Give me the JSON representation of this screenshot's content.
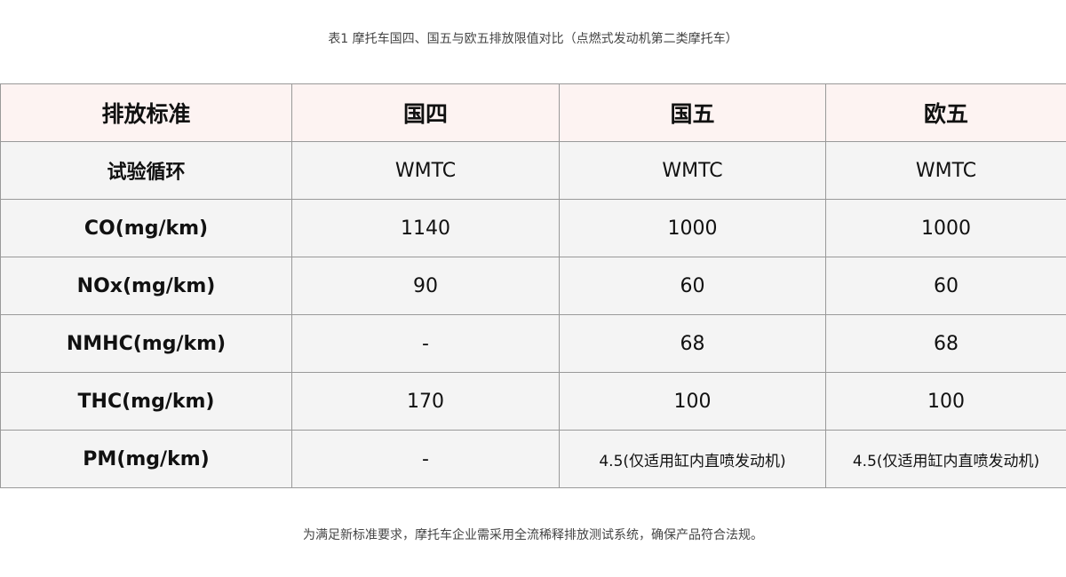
{
  "caption": "表1 摩托车国四、国五与欧五排放限值对比（点燃式发动机第二类摩托车）",
  "table": {
    "headers": [
      "排放标准",
      "国四",
      "国五",
      "欧五"
    ],
    "rows": [
      [
        "试验循环",
        "WMTC",
        "WMTC",
        "WMTC"
      ],
      [
        "CO(mg/km)",
        "1140",
        "1000",
        "1000"
      ],
      [
        "NOx(mg/km)",
        "90",
        "60",
        "60"
      ],
      [
        "NMHC(mg/km)",
        "-",
        "68",
        "68"
      ],
      [
        "THC(mg/km)",
        "170",
        "100",
        "100"
      ],
      [
        "PM(mg/km)",
        "-",
        "4.5(仅适用缸内直喷发动机)",
        "4.5(仅适用缸内直喷发动机)"
      ]
    ]
  },
  "note": "为满足新标准要求，摩托车企业需采用全流稀释排放测试系统，确保产品符合法规。",
  "colors": {
    "header_bg": "#fdf3f2",
    "row_bg": "#f4f4f4",
    "border": "#999999"
  }
}
